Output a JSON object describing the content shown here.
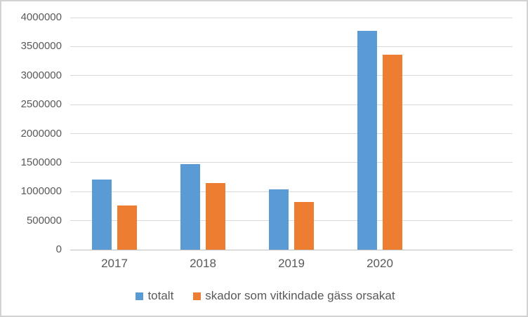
{
  "chart_data": {
    "type": "bar",
    "title": "",
    "xlabel": "",
    "ylabel": "",
    "categories": [
      "2017",
      "2018",
      "2019",
      "2020"
    ],
    "category_slots": 5,
    "series": [
      {
        "name": "totalt",
        "color": "#5B9BD5",
        "values": [
          1210000,
          1470000,
          1040000,
          3770000
        ]
      },
      {
        "name": "skador som vitkindade gäss orsakat",
        "color": "#ED7D31",
        "values": [
          760000,
          1150000,
          820000,
          3360000
        ]
      }
    ],
    "ylim": [
      0,
      4000000
    ],
    "ytick_step": 500000,
    "ytick_labels": [
      "0",
      "500000",
      "1000000",
      "1500000",
      "2000000",
      "2500000",
      "3000000",
      "3500000",
      "4000000"
    ],
    "grid": true,
    "legend_position": "bottom"
  },
  "colors": {
    "gridline": "#d9d9d9",
    "axis_line": "#bfbfbf",
    "text": "#595959",
    "frame_border": "#d2d2d2",
    "background": "#ffffff"
  }
}
